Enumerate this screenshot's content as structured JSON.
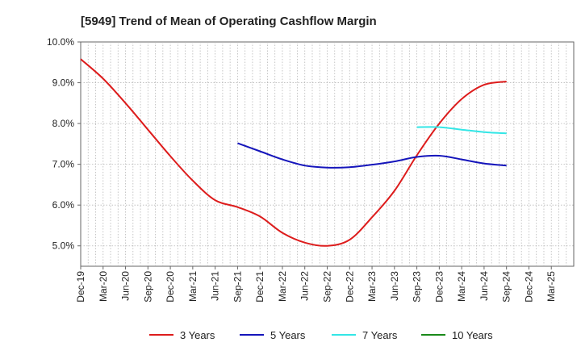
{
  "chart_data": {
    "type": "line",
    "title": "[5949]  Trend of Mean of Operating Cashflow Margin",
    "xlabel": "",
    "ylabel": "",
    "ylim": [
      4.5,
      10.0
    ],
    "y_ticks": [
      "5.0%",
      "6.0%",
      "7.0%",
      "8.0%",
      "9.0%",
      "10.0%"
    ],
    "y_tick_values": [
      5,
      6,
      7,
      8,
      9,
      10
    ],
    "x_ticks": [
      "Dec-19",
      "Mar-20",
      "Jun-20",
      "Sep-20",
      "Dec-20",
      "Mar-21",
      "Jun-21",
      "Sep-21",
      "Dec-21",
      "Mar-22",
      "Jun-22",
      "Sep-22",
      "Dec-22",
      "Mar-23",
      "Jun-23",
      "Sep-23",
      "Dec-23",
      "Mar-24",
      "Jun-24",
      "Sep-24",
      "Dec-24",
      "Mar-25"
    ],
    "grid": true,
    "legend_position": "bottom",
    "series": [
      {
        "name": "3 Years",
        "color": "#dd1c1c",
        "points": [
          [
            "Dec-19",
            9.58
          ],
          [
            "Mar-20",
            9.1
          ],
          [
            "Jun-20",
            8.5
          ],
          [
            "Sep-20",
            7.85
          ],
          [
            "Dec-20",
            7.2
          ],
          [
            "Mar-21",
            6.6
          ],
          [
            "Jun-21",
            6.12
          ],
          [
            "Sep-21",
            5.95
          ],
          [
            "Dec-21",
            5.72
          ],
          [
            "Mar-22",
            5.32
          ],
          [
            "Jun-22",
            5.08
          ],
          [
            "Sep-22",
            5.0
          ],
          [
            "Dec-22",
            5.15
          ],
          [
            "Mar-23",
            5.7
          ],
          [
            "Jun-23",
            6.35
          ],
          [
            "Sep-23",
            7.22
          ],
          [
            "Dec-23",
            8.0
          ],
          [
            "Mar-24",
            8.6
          ],
          [
            "Jun-24",
            8.95
          ],
          [
            "Sep-24",
            9.03
          ]
        ]
      },
      {
        "name": "5 Years",
        "color": "#1515bb",
        "points": [
          [
            "Sep-21",
            7.52
          ],
          [
            "Dec-21",
            7.32
          ],
          [
            "Mar-22",
            7.12
          ],
          [
            "Jun-22",
            6.97
          ],
          [
            "Sep-22",
            6.92
          ],
          [
            "Dec-22",
            6.93
          ],
          [
            "Mar-23",
            6.99
          ],
          [
            "Jun-23",
            7.07
          ],
          [
            "Sep-23",
            7.18
          ],
          [
            "Dec-23",
            7.21
          ],
          [
            "Mar-24",
            7.12
          ],
          [
            "Jun-24",
            7.02
          ],
          [
            "Sep-24",
            6.97
          ]
        ]
      },
      {
        "name": "7 Years",
        "color": "#33e6e6",
        "points": [
          [
            "Sep-23",
            7.91
          ],
          [
            "Dec-23",
            7.91
          ],
          [
            "Mar-24",
            7.85
          ],
          [
            "Jun-24",
            7.79
          ],
          [
            "Sep-24",
            7.76
          ]
        ]
      },
      {
        "name": "10 Years",
        "color": "#1a8a1a",
        "points": []
      }
    ]
  }
}
